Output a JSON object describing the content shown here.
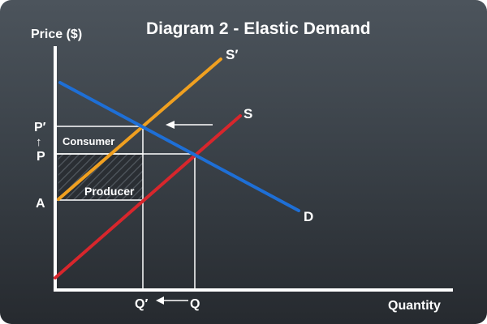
{
  "title": "Diagram 2 - Elastic Demand",
  "axis": {
    "y_label": "Price ($)",
    "x_label": "Quantity"
  },
  "curves": {
    "supply_new": {
      "label": "S′",
      "color": "#f0a020"
    },
    "supply": {
      "label": "S",
      "color": "#d8262c"
    },
    "demand": {
      "label": "D",
      "color": "#1e6fd6"
    }
  },
  "price_labels": {
    "p_prime": "P′",
    "arrow_up": "↑",
    "p": "P",
    "a": "A"
  },
  "quantity_labels": {
    "q_prime": "Q′",
    "q": "Q"
  },
  "regions": {
    "consumer": "Consumer",
    "producer": "Producer"
  }
}
